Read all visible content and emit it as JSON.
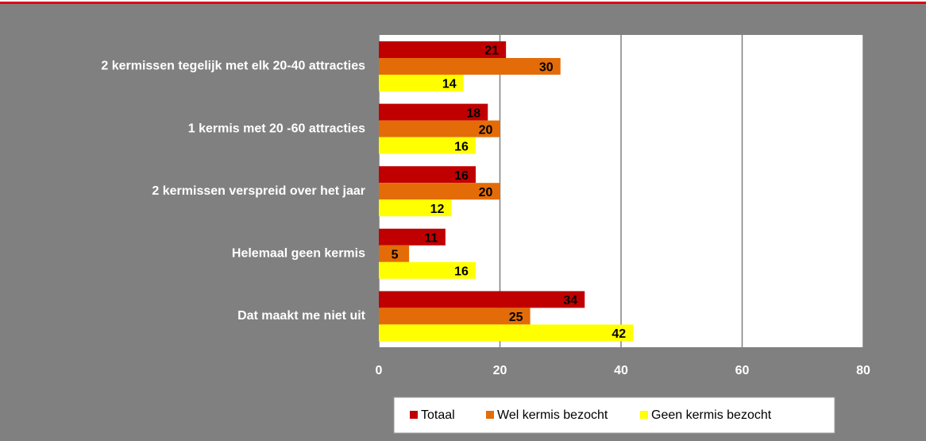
{
  "chart_data": {
    "type": "bar",
    "orientation": "horizontal",
    "categories": [
      "2 kermissen tegelijk met elk 20-40 attracties",
      "1 kermis met 20 -60 attracties",
      "2 kermissen verspreid over het jaar",
      "Helemaal geen kermis",
      "Dat maakt me niet uit"
    ],
    "series": [
      {
        "name": "Totaal",
        "color": "#c00000",
        "values": [
          21,
          18,
          16,
          11,
          34
        ]
      },
      {
        "name": "Wel kermis bezocht",
        "color": "#e36c09",
        "values": [
          30,
          20,
          20,
          5,
          25
        ]
      },
      {
        "name": "Geen kermis bezocht",
        "color": "#ffff00",
        "values": [
          14,
          16,
          12,
          16,
          42
        ]
      }
    ],
    "xlim": [
      0,
      80
    ],
    "xticks": [
      0,
      20,
      40,
      60,
      80
    ],
    "grid": true,
    "legend": "bottom"
  }
}
